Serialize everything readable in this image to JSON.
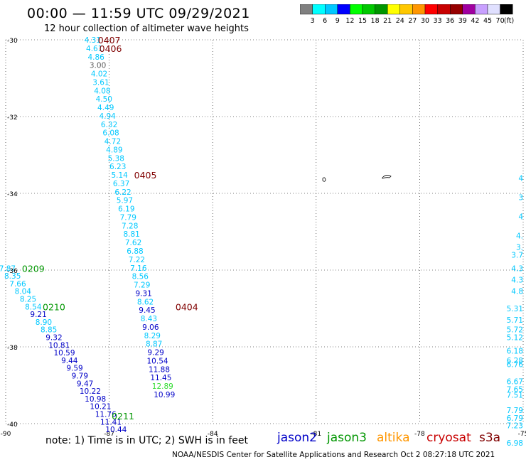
{
  "header": {
    "title": "00:00 — 11:59 UTC 09/29/2021",
    "subtitle": "12 hour collection of altimeter wave heights"
  },
  "scale": {
    "labels": [
      "3",
      "6",
      "9",
      "12",
      "15",
      "18",
      "21",
      "24",
      "27",
      "30",
      "33",
      "36",
      "39",
      "42",
      "45",
      "70"
    ],
    "unit": "(ft)",
    "colors": [
      "#808080",
      "#00ffff",
      "#00c8ff",
      "#0000ff",
      "#00ff00",
      "#00c800",
      "#009600",
      "#ffff00",
      "#ffc800",
      "#ff9600",
      "#ff0000",
      "#c80000",
      "#960000",
      "#a000a0",
      "#c8a0ff",
      "#e0e0ff",
      "#000000"
    ]
  },
  "footer": {
    "note": "note:  1) Time is in UTC;  2) SWH is in feet",
    "credit": "NOAA/NESDIS Center for Satellite Applications and Research    Oct  2 08:27:18 UTC 2021",
    "satellites": [
      {
        "name": "jason2",
        "color": "#0000c8"
      },
      {
        "name": "jason3",
        "color": "#009600"
      },
      {
        "name": "altika",
        "color": "#ff9600"
      },
      {
        "name": "cryosat",
        "color": "#c80000"
      },
      {
        "name": "s3a",
        "color": "#800000"
      }
    ]
  },
  "chart_data": {
    "type": "scatter",
    "title": "12 hour collection of altimeter wave heights",
    "xlim": [
      -90,
      -75
    ],
    "ylim": [
      -40,
      -30
    ],
    "x_ticks": [
      "-90",
      "-87",
      "-84",
      "-81",
      "-78",
      "-75"
    ],
    "y_ticks": [
      "-30",
      "-32",
      "-34",
      "-36",
      "-38",
      "-40"
    ],
    "grid": "dotted",
    "tracks": [
      {
        "points": [
          {
            "x": -87.48,
            "y": -30.0,
            "v": "4.31",
            "c": "#00c8ff"
          },
          {
            "x": -87.43,
            "y": -30.22,
            "v": "4.61",
            "c": "#00c8ff"
          },
          {
            "x": -87.38,
            "y": -30.44,
            "v": "4.86",
            "c": "#00c8ff"
          },
          {
            "x": -87.33,
            "y": -30.66,
            "v": "3.00",
            "c": "#606060"
          },
          {
            "x": -87.29,
            "y": -30.88,
            "v": "4.02",
            "c": "#00c8ff"
          },
          {
            "x": -87.24,
            "y": -31.1,
            "v": "3.61",
            "c": "#00c8ff"
          },
          {
            "x": -87.2,
            "y": -31.32,
            "v": "4.08",
            "c": "#00c8ff"
          },
          {
            "x": -87.15,
            "y": -31.54,
            "v": "4.50",
            "c": "#00c8ff"
          },
          {
            "x": -87.1,
            "y": -31.76,
            "v": "4.49",
            "c": "#00c8ff"
          },
          {
            "x": -87.05,
            "y": -31.98,
            "v": "4.94",
            "c": "#00c8ff"
          },
          {
            "x": -87.0,
            "y": -32.2,
            "v": "6.32",
            "c": "#00c8ff"
          },
          {
            "x": -86.95,
            "y": -32.42,
            "v": "6.08",
            "c": "#00c8ff"
          },
          {
            "x": -86.9,
            "y": -32.64,
            "v": "4.72",
            "c": "#00c8ff"
          },
          {
            "x": -86.85,
            "y": -32.86,
            "v": "4.89",
            "c": "#00c8ff"
          },
          {
            "x": -86.8,
            "y": -33.08,
            "v": "5.38",
            "c": "#00c8ff"
          },
          {
            "x": -86.75,
            "y": -33.3,
            "v": "6.23",
            "c": "#00c8ff"
          },
          {
            "x": -86.7,
            "y": -33.52,
            "v": "5.14",
            "c": "#00c8ff"
          },
          {
            "x": -86.65,
            "y": -33.74,
            "v": "6.37",
            "c": "#00c8ff"
          },
          {
            "x": -86.6,
            "y": -33.96,
            "v": "6.22",
            "c": "#00c8ff"
          },
          {
            "x": -86.55,
            "y": -34.18,
            "v": "5.97",
            "c": "#00c8ff"
          },
          {
            "x": -86.5,
            "y": -34.4,
            "v": "6.19",
            "c": "#00c8ff"
          },
          {
            "x": -86.45,
            "y": -34.62,
            "v": "7.79",
            "c": "#00c8ff"
          },
          {
            "x": -86.4,
            "y": -34.84,
            "v": "7.28",
            "c": "#00c8ff"
          },
          {
            "x": -86.35,
            "y": -35.06,
            "v": "8.81",
            "c": "#00c8ff"
          },
          {
            "x": -86.3,
            "y": -35.28,
            "v": "7.62",
            "c": "#00c8ff"
          },
          {
            "x": -86.25,
            "y": -35.5,
            "v": "6.88",
            "c": "#00c8ff"
          },
          {
            "x": -86.2,
            "y": -35.72,
            "v": "7.22",
            "c": "#00c8ff"
          },
          {
            "x": -86.15,
            "y": -35.94,
            "v": "7.16",
            "c": "#00c8ff"
          },
          {
            "x": -86.1,
            "y": -36.16,
            "v": "8.56",
            "c": "#00c8ff"
          },
          {
            "x": -86.05,
            "y": -36.38,
            "v": "7.29",
            "c": "#00c8ff"
          },
          {
            "x": -86.0,
            "y": -36.6,
            "v": "9.31",
            "c": "#0000c8"
          },
          {
            "x": -85.95,
            "y": -36.82,
            "v": "8.62",
            "c": "#00c8ff"
          },
          {
            "x": -85.9,
            "y": -37.04,
            "v": "9.45",
            "c": "#0000c8"
          },
          {
            "x": -85.85,
            "y": -37.26,
            "v": "8.43",
            "c": "#00c8ff"
          },
          {
            "x": -85.8,
            "y": -37.48,
            "v": "9.06",
            "c": "#0000c8"
          },
          {
            "x": -85.75,
            "y": -37.7,
            "v": "8.29",
            "c": "#00c8ff"
          },
          {
            "x": -85.7,
            "y": -37.92,
            "v": "8.87",
            "c": "#00c8ff"
          },
          {
            "x": -85.65,
            "y": -38.14,
            "v": "9.29",
            "c": "#0000c8"
          },
          {
            "x": -85.6,
            "y": -38.36,
            "v": "10.54",
            "c": "#0000c8"
          },
          {
            "x": -85.55,
            "y": -38.58,
            "v": "11.88",
            "c": "#0000c8"
          },
          {
            "x": -85.5,
            "y": -38.8,
            "v": "11.45",
            "c": "#0000c8"
          },
          {
            "x": -85.45,
            "y": -39.02,
            "v": "12.89",
            "c": "#32dc32"
          },
          {
            "x": -85.4,
            "y": -39.24,
            "v": "10.99",
            "c": "#0000c8"
          }
        ]
      },
      {
        "points": [
          {
            "x": -89.95,
            "y": -35.95,
            "v": "7.87",
            "c": "#00c8ff"
          },
          {
            "x": -89.8,
            "y": -36.15,
            "v": "8.35",
            "c": "#00c8ff"
          },
          {
            "x": -89.65,
            "y": -36.35,
            "v": "7.66",
            "c": "#00c8ff"
          },
          {
            "x": -89.5,
            "y": -36.55,
            "v": "8.04",
            "c": "#00c8ff"
          },
          {
            "x": -89.35,
            "y": -36.75,
            "v": "8.25",
            "c": "#00c8ff"
          },
          {
            "x": -89.2,
            "y": -36.95,
            "v": "8.54",
            "c": "#00c8ff"
          },
          {
            "x": -89.05,
            "y": -37.15,
            "v": "9.21",
            "c": "#0000c8"
          },
          {
            "x": -88.9,
            "y": -37.35,
            "v": "8.90",
            "c": "#00c8ff"
          },
          {
            "x": -88.75,
            "y": -37.55,
            "v": "8.85",
            "c": "#00c8ff"
          },
          {
            "x": -88.6,
            "y": -37.75,
            "v": "9.32",
            "c": "#0000c8"
          },
          {
            "x": -88.45,
            "y": -37.95,
            "v": "10.81",
            "c": "#0000c8"
          },
          {
            "x": -88.3,
            "y": -38.15,
            "v": "10.59",
            "c": "#0000c8"
          },
          {
            "x": -88.15,
            "y": -38.35,
            "v": "9.44",
            "c": "#0000c8"
          },
          {
            "x": -88.0,
            "y": -38.55,
            "v": "9.59",
            "c": "#0000c8"
          },
          {
            "x": -87.85,
            "y": -38.75,
            "v": "9.79",
            "c": "#0000c8"
          },
          {
            "x": -87.7,
            "y": -38.95,
            "v": "9.47",
            "c": "#0000c8"
          },
          {
            "x": -87.55,
            "y": -39.15,
            "v": "10.22",
            "c": "#0000c8"
          },
          {
            "x": -87.4,
            "y": -39.35,
            "v": "10.98",
            "c": "#0000c8"
          },
          {
            "x": -87.25,
            "y": -39.55,
            "v": "10.21",
            "c": "#0000c8"
          },
          {
            "x": -87.1,
            "y": -39.75,
            "v": "11.76",
            "c": "#0000c8"
          },
          {
            "x": -86.95,
            "y": -39.95,
            "v": "11.41",
            "c": "#0000c8"
          },
          {
            "x": -86.8,
            "y": -40.15,
            "v": "10.44",
            "c": "#0000c8"
          }
        ]
      },
      {
        "points": [
          {
            "x": -75.0,
            "y": -33.6,
            "v": "4",
            "c": "#00c8ff"
          },
          {
            "x": -75.0,
            "y": -34.1,
            "v": "3",
            "c": "#00c8ff"
          },
          {
            "x": -75.0,
            "y": -34.6,
            "v": "4",
            "c": "#00c8ff"
          },
          {
            "x": -75.0,
            "y": -35.1,
            "v": "4.",
            "c": "#00c8ff"
          },
          {
            "x": -75.0,
            "y": -35.4,
            "v": "3.",
            "c": "#00c8ff"
          },
          {
            "x": -75.0,
            "y": -35.6,
            "v": "3.7",
            "c": "#00c8ff"
          },
          {
            "x": -75.0,
            "y": -35.95,
            "v": "4.3",
            "c": "#00c8ff"
          },
          {
            "x": -75.0,
            "y": -36.25,
            "v": "4.3",
            "c": "#00c8ff"
          },
          {
            "x": -75.0,
            "y": -36.55,
            "v": "4.8",
            "c": "#00c8ff"
          },
          {
            "x": -75.0,
            "y": -37.0,
            "v": "5.31",
            "c": "#00c8ff"
          },
          {
            "x": -75.0,
            "y": -37.3,
            "v": "5.71",
            "c": "#00c8ff"
          },
          {
            "x": -75.0,
            "y": -37.55,
            "v": "5.72",
            "c": "#00c8ff"
          },
          {
            "x": -75.0,
            "y": -37.75,
            "v": "5.12",
            "c": "#00c8ff"
          },
          {
            "x": -75.0,
            "y": -38.1,
            "v": "6.18",
            "c": "#00c8ff"
          },
          {
            "x": -75.0,
            "y": -38.35,
            "v": "6.28",
            "c": "#00c8ff"
          },
          {
            "x": -75.0,
            "y": -38.45,
            "v": "6.76",
            "c": "#00c8ff"
          },
          {
            "x": -75.0,
            "y": -38.9,
            "v": "6.67",
            "c": "#00c8ff"
          },
          {
            "x": -75.0,
            "y": -39.1,
            "v": "7.65",
            "c": "#00c8ff"
          },
          {
            "x": -75.0,
            "y": -39.25,
            "v": "7.51",
            "c": "#00c8ff"
          },
          {
            "x": -75.0,
            "y": -39.65,
            "v": "7.79",
            "c": "#00c8ff"
          },
          {
            "x": -75.0,
            "y": -39.85,
            "v": "6.79",
            "c": "#00c8ff"
          },
          {
            "x": -75.0,
            "y": -40.05,
            "v": "7.23",
            "c": "#00c8ff"
          },
          {
            "x": -75.0,
            "y": -40.5,
            "v": "6.98",
            "c": "#00c8ff"
          }
        ]
      }
    ],
    "time_labels": [
      {
        "x": -87.0,
        "y": -30.0,
        "v": "0407",
        "c": "#800000"
      },
      {
        "x": -86.96,
        "y": -30.22,
        "v": "0406",
        "c": "#800000"
      },
      {
        "x": -85.95,
        "y": -33.52,
        "v": "0405",
        "c": "#800000"
      },
      {
        "x": -84.75,
        "y": -36.95,
        "v": "0404",
        "c": "#800000"
      },
      {
        "x": -89.2,
        "y": -35.95,
        "v": "0209",
        "c": "#009600"
      },
      {
        "x": -88.6,
        "y": -36.95,
        "v": "0210",
        "c": "#009600"
      },
      {
        "x": -86.6,
        "y": -39.8,
        "v": "0211",
        "c": "#009600"
      }
    ]
  }
}
